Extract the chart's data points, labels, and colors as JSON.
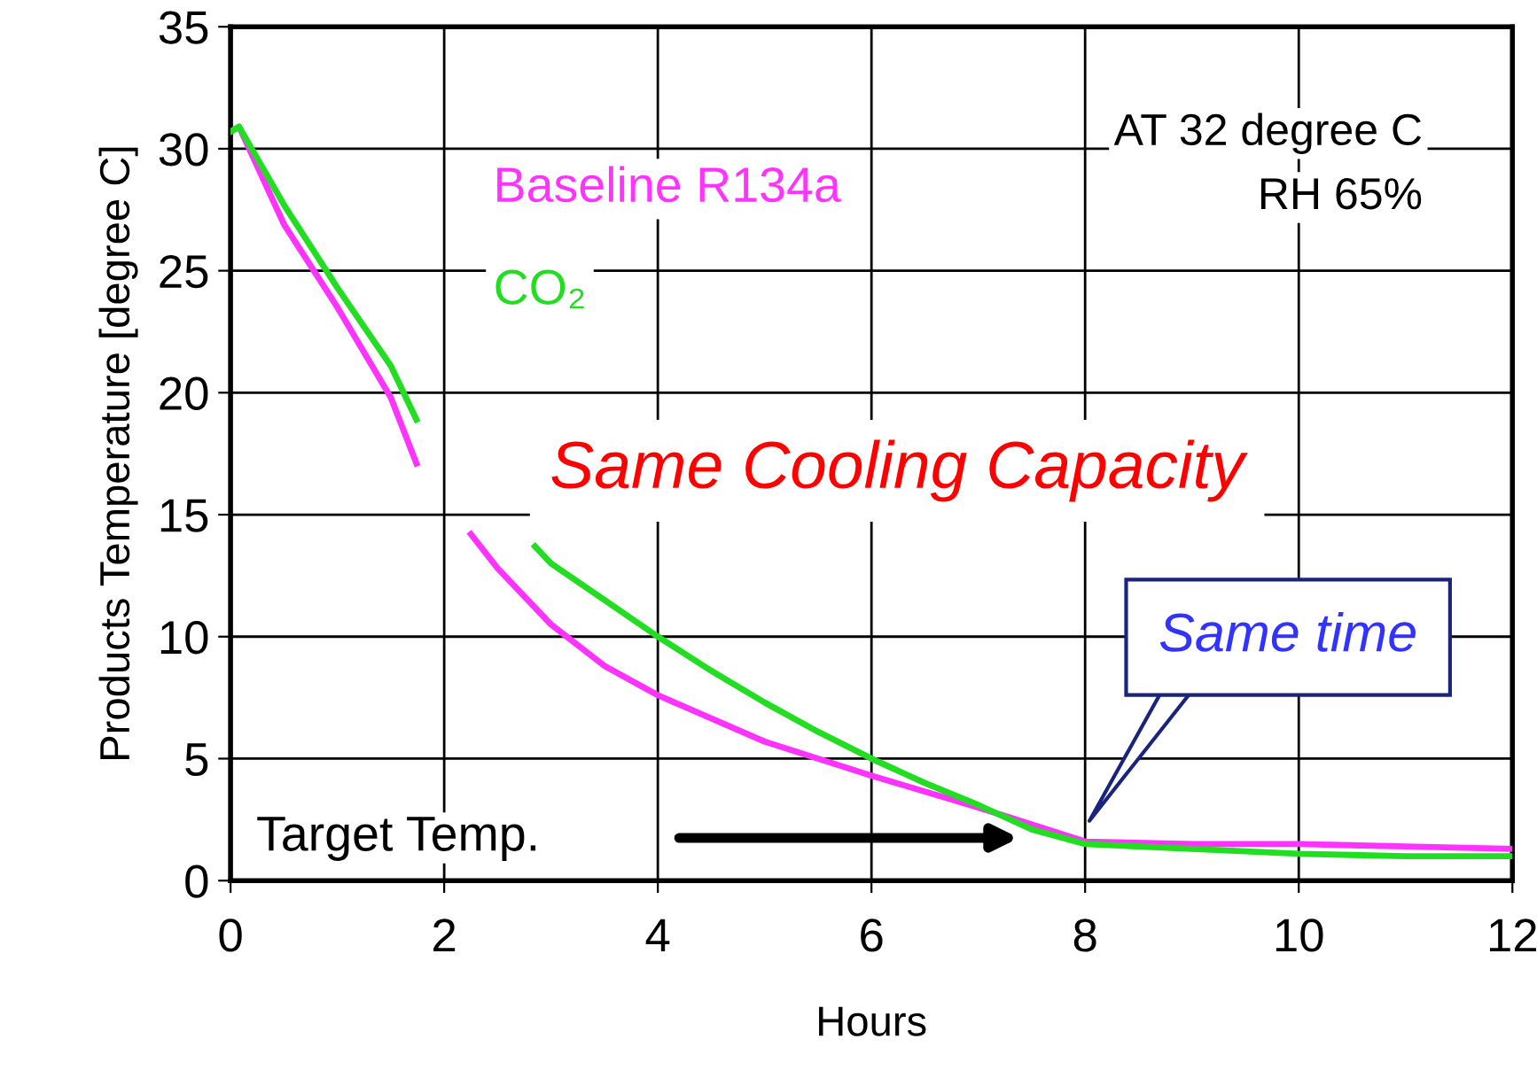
{
  "chart_data": {
    "type": "line",
    "xlabel": "Hours",
    "ylabel": "Products Temperature [degree C]",
    "xlim": [
      0,
      12
    ],
    "ylim": [
      0,
      35
    ],
    "xticks": [
      0,
      2,
      4,
      6,
      8,
      10,
      12
    ],
    "yticks": [
      0,
      5,
      10,
      15,
      20,
      25,
      30,
      35
    ],
    "grid": true,
    "legend": false,
    "marker": "none",
    "line_style": "solid",
    "series": [
      {
        "name": "Baseline R134a",
        "color": "#ff33ff",
        "x": [
          0,
          0.08,
          0.5,
          1,
          1.5,
          1.74,
          2,
          2.25,
          2.5,
          3,
          3.5,
          4,
          5,
          6,
          7,
          7.5,
          8,
          9,
          10,
          11,
          12
        ],
        "values": [
          30.7,
          30.9,
          26.9,
          23.5,
          19.8,
          17.1,
          null,
          14.2,
          12.8,
          10.5,
          8.8,
          7.6,
          5.7,
          4.3,
          3.0,
          2.3,
          1.6,
          1.5,
          1.5,
          1.4,
          1.3
        ]
      },
      {
        "name": "CO₂",
        "color": "#22dd22",
        "x": [
          0,
          0.08,
          0.5,
          1,
          1.5,
          1.74,
          2,
          2.85,
          3,
          3.5,
          4,
          4.5,
          5,
          5.5,
          6,
          6.5,
          7,
          7.5,
          8,
          9,
          10,
          11,
          12
        ],
        "values": [
          30.7,
          30.9,
          27.7,
          24.3,
          21.1,
          18.9,
          null,
          13.7,
          13.0,
          11.5,
          10.0,
          8.6,
          7.3,
          6.1,
          5.0,
          4.0,
          3.1,
          2.1,
          1.5,
          1.3,
          1.1,
          1.0,
          1.0
        ]
      }
    ],
    "annotations": [
      "AT 32 degree C",
      "RH 65%",
      "Same Cooling Capacity",
      "Same time",
      "Target Temp."
    ]
  }
}
